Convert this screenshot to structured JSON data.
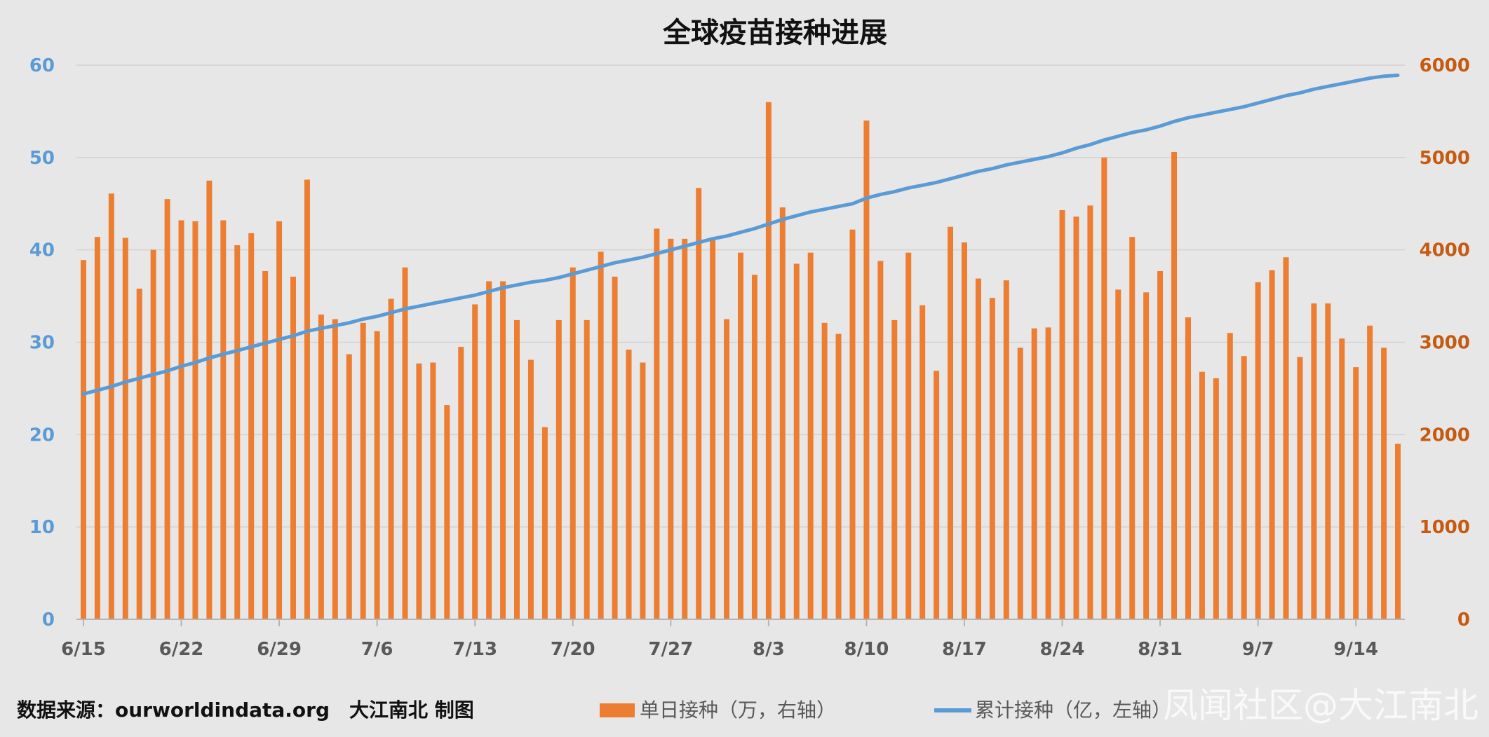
{
  "chart_data": {
    "type": "bar+line",
    "title": "全球疫苗接种进展",
    "source": "数据来源：ourworldindata.org　大江南北 制图",
    "watermark": "凤闻社区@大江南北",
    "x_tick_labels": [
      "6/15",
      "6/22",
      "6/29",
      "7/6",
      "7/13",
      "7/20",
      "7/27",
      "8/3",
      "8/10",
      "8/17",
      "8/24",
      "8/31",
      "9/7",
      "9/14"
    ],
    "y_left": {
      "ticks": [
        "0",
        "10",
        "20",
        "30",
        "40",
        "50",
        "60"
      ],
      "range": [
        0,
        60
      ],
      "color": "#5b9bd5"
    },
    "y_right": {
      "ticks": [
        "0",
        "1000",
        "2000",
        "3000",
        "4000",
        "5000",
        "6000"
      ],
      "range": [
        0,
        6000
      ],
      "color": "#c55a11"
    },
    "legend_position": "bottom",
    "series": [
      {
        "name": "单日接种（万，右轴）",
        "type": "bar",
        "axis": "right",
        "color": "#ed7d31",
        "values": [
          3890,
          4140,
          4610,
          4130,
          3580,
          4000,
          4550,
          4320,
          4310,
          4750,
          4320,
          4050,
          4180,
          3770,
          4310,
          3710,
          4760,
          3300,
          3250,
          2870,
          3210,
          3120,
          3470,
          3810,
          2770,
          2780,
          2320,
          2950,
          3410,
          3660,
          3660,
          3240,
          2810,
          2080,
          3240,
          3810,
          3240,
          3980,
          3710,
          2920,
          2780,
          4230,
          4120,
          4120,
          4670,
          4130,
          3250,
          3970,
          3730,
          5600,
          4460,
          3850,
          3970,
          3210,
          3090,
          4220,
          5400,
          3880,
          3240,
          3970,
          3400,
          2690,
          4250,
          4080,
          3690,
          3480,
          3670,
          2940,
          3150,
          3160,
          4430,
          4360,
          4480,
          5000,
          3570,
          4140,
          3540,
          3770,
          5060,
          3270,
          2680,
          2610,
          3100,
          2850,
          3650,
          3780,
          3920,
          2840,
          3420,
          3420,
          3040,
          2730,
          3180,
          2940,
          1900
        ]
      },
      {
        "name": "累计接种（亿，左轴）",
        "type": "line",
        "axis": "left",
        "color": "#5b9bd5",
        "values": [
          24.4,
          24.8,
          25.2,
          25.7,
          26.1,
          26.5,
          26.9,
          27.4,
          27.8,
          28.3,
          28.7,
          29.1,
          29.5,
          29.9,
          30.3,
          30.7,
          31.2,
          31.5,
          31.8,
          32.1,
          32.5,
          32.8,
          33.2,
          33.6,
          33.9,
          34.2,
          34.5,
          34.8,
          35.1,
          35.5,
          35.9,
          36.2,
          36.5,
          36.7,
          37.0,
          37.4,
          37.8,
          38.2,
          38.6,
          38.9,
          39.2,
          39.6,
          40.0,
          40.4,
          40.8,
          41.2,
          41.5,
          41.9,
          42.3,
          42.8,
          43.3,
          43.7,
          44.1,
          44.4,
          44.7,
          45.0,
          45.6,
          46.0,
          46.3,
          46.7,
          47.0,
          47.3,
          47.7,
          48.1,
          48.5,
          48.8,
          49.2,
          49.5,
          49.8,
          50.1,
          50.5,
          51.0,
          51.4,
          51.9,
          52.3,
          52.7,
          53.0,
          53.4,
          53.9,
          54.3,
          54.6,
          54.9,
          55.2,
          55.5,
          55.9,
          56.3,
          56.7,
          57.0,
          57.4,
          57.7,
          58.0,
          58.3,
          58.6,
          58.8,
          58.9
        ]
      }
    ]
  }
}
